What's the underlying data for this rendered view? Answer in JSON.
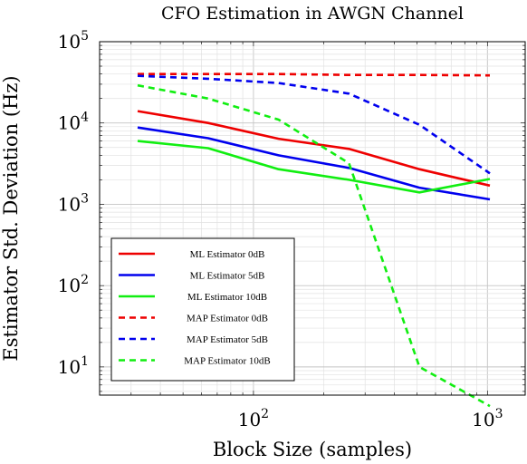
{
  "chart_data": {
    "type": "line",
    "title": "CFO Estimation in AWGN Channel",
    "xlabel": "Block Size (samples)",
    "ylabel": "Estimator Std. Deviation (Hz)",
    "xscale": "log",
    "yscale": "log",
    "xlim": [
      22,
      1450
    ],
    "ylim": [
      4.5,
      100000
    ],
    "x_ticks": [
      {
        "value": 100,
        "base": "10",
        "exp": "2"
      },
      {
        "value": 1000,
        "base": "10",
        "exp": "3"
      }
    ],
    "y_ticks": [
      {
        "value": 10,
        "base": "10",
        "exp": "1"
      },
      {
        "value": 100,
        "base": "10",
        "exp": "2"
      },
      {
        "value": 1000,
        "base": "10",
        "exp": "3"
      },
      {
        "value": 10000,
        "base": "10",
        "exp": "4"
      },
      {
        "value": 100000,
        "base": "10",
        "exp": "5"
      }
    ],
    "grid": true,
    "legend_position": "bottom-left",
    "x": [
      32,
      64,
      128,
      256,
      512,
      1024
    ],
    "series": [
      {
        "name": "ML Estimator 0dB",
        "color": "#ee0000",
        "dashed": false,
        "values": [
          14000,
          10000,
          6400,
          4800,
          2700,
          1700
        ]
      },
      {
        "name": "ML Estimator 5dB",
        "color": "#0000ee",
        "dashed": false,
        "values": [
          8800,
          6500,
          4000,
          2800,
          1600,
          1150
        ]
      },
      {
        "name": "ML Estimator 10dB",
        "color": "#11ee11",
        "dashed": false,
        "values": [
          6000,
          4900,
          2700,
          2000,
          1400,
          2050
        ]
      },
      {
        "name": "MAP Estimator 0dB",
        "color": "#ee0000",
        "dashed": true,
        "values": [
          40000,
          40000,
          40000,
          39000,
          39000,
          38500
        ]
      },
      {
        "name": "MAP Estimator 5dB",
        "color": "#0000ee",
        "dashed": true,
        "values": [
          38000,
          35000,
          31000,
          23000,
          9500,
          2400
        ]
      },
      {
        "name": "MAP Estimator 10dB",
        "color": "#11ee11",
        "dashed": true,
        "values": [
          29000,
          20000,
          11000,
          3200,
          10,
          3.3
        ]
      }
    ]
  }
}
